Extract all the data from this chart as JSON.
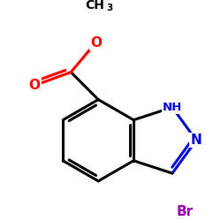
{
  "bg_color": "#ffffff",
  "bond_color": "#000000",
  "bond_width": 2.2,
  "atom_colors": {
    "O": "#ff0000",
    "N": "#0000dd",
    "Br": "#9900aa",
    "C": "#000000"
  },
  "figsize": [
    2.5,
    2.5
  ],
  "dpi": 100
}
